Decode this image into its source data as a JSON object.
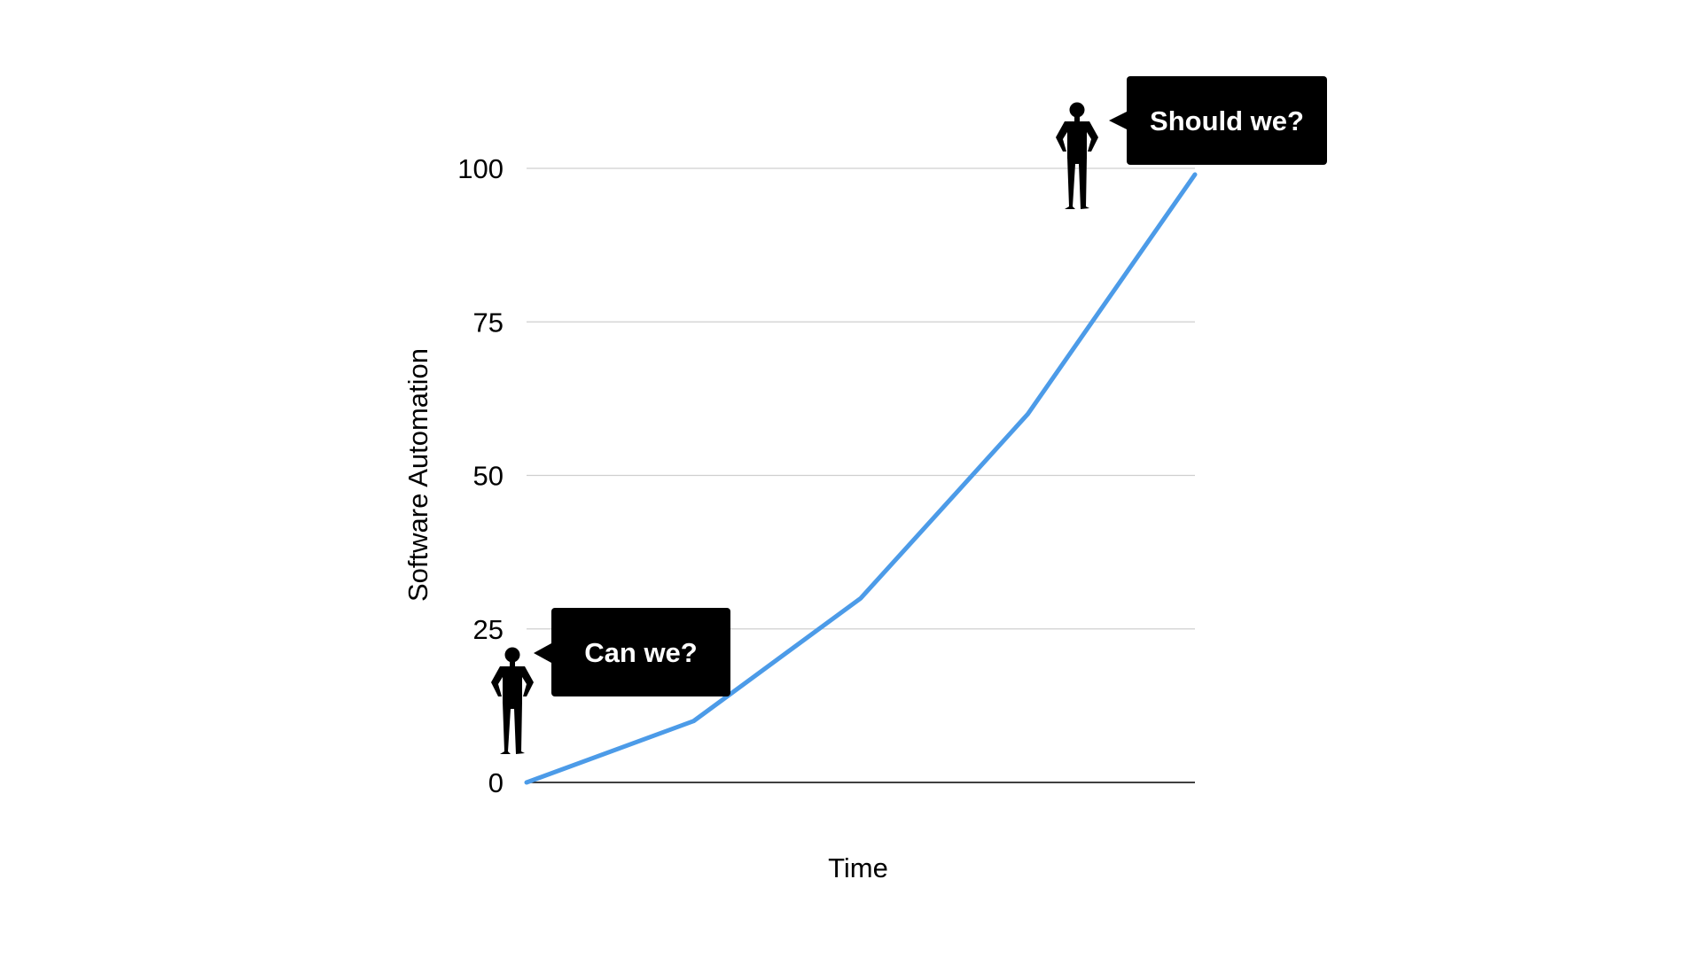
{
  "chart_data": {
    "type": "line",
    "title": "",
    "xlabel": "Time",
    "ylabel": "Software Automation",
    "ylim": [
      0,
      100
    ],
    "yticks": [
      0,
      25,
      50,
      75,
      100
    ],
    "x": [
      0,
      1,
      2,
      3,
      4
    ],
    "series": [
      {
        "values": [
          0,
          10,
          30,
          60,
          99
        ],
        "color": "#4C9BE8"
      }
    ],
    "grid": true,
    "annotations": [
      {
        "text": "Can we?",
        "point_index": 0
      },
      {
        "text": "Should we?",
        "point_index": 4
      }
    ]
  },
  "icons": {
    "person": "person-silhouette-icon",
    "bubble_color": "#000000"
  }
}
